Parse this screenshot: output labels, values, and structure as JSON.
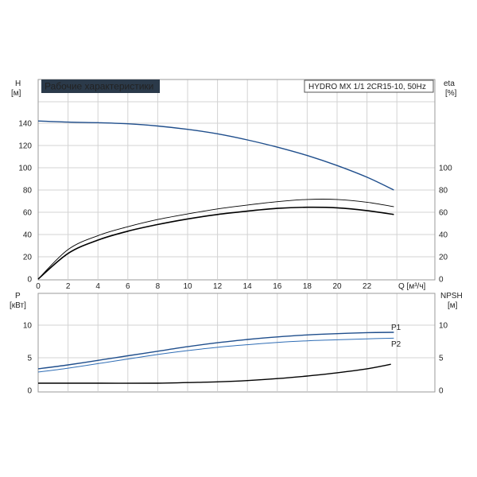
{
  "header": {
    "title": "Рабочие характеристики",
    "model": "HYDRO MX 1/1 2CR15-10, 50Hz"
  },
  "colors": {
    "head_curve": "#1f4e8c",
    "efficiency_curve_1": "#000000",
    "efficiency_curve_2": "#000000",
    "p1_curve": "#1f4e8c",
    "p2_curve": "#2f6db5",
    "npsh_curve": "#000000",
    "title_bg": "#2b3a4a",
    "title_fg": "#ffffff",
    "grid": "#d3d3d3"
  },
  "chart_data": [
    {
      "type": "line",
      "panel": "top",
      "xlabel": "Q [м³/ч]",
      "ylabel_left": "H",
      "ylabel_left_unit": "[м]",
      "ylabel_right": "eta",
      "ylabel_right_unit": "[%]",
      "xlim": [
        0,
        24
      ],
      "ylim": [
        0,
        160
      ],
      "x_ticks": [
        0,
        2,
        4,
        6,
        8,
        10,
        12,
        14,
        16,
        18,
        20,
        22
      ],
      "y_ticks_left": [
        0,
        20,
        40,
        60,
        80,
        100,
        120,
        140
      ],
      "y_ticks_right": [
        0,
        20,
        40,
        60,
        80,
        100
      ],
      "grid": true,
      "series": [
        {
          "key": "head",
          "axis": "left",
          "x": [
            0,
            2,
            4,
            6,
            8,
            10,
            12,
            14,
            16,
            18,
            20,
            22,
            23.8
          ],
          "values": [
            142,
            141,
            140.5,
            139.5,
            137.5,
            134.5,
            130.5,
            125,
            118.5,
            111,
            102,
            91.5,
            80
          ]
        },
        {
          "key": "eta_1",
          "axis": "right",
          "x": [
            0,
            2,
            4,
            6,
            8,
            10,
            12,
            14,
            16,
            18,
            20,
            22,
            23.8
          ],
          "values": [
            0,
            26.5,
            39,
            47,
            53.5,
            58.5,
            63,
            66.5,
            69.5,
            71.5,
            71.5,
            69,
            65
          ]
        },
        {
          "key": "eta_2",
          "axis": "right",
          "x": [
            0,
            2,
            4,
            6,
            8,
            10,
            12,
            14,
            16,
            18,
            20,
            22,
            23.8
          ],
          "values": [
            0,
            23,
            35,
            43,
            49,
            54,
            58,
            61,
            63.5,
            64.5,
            64,
            61.5,
            58
          ]
        }
      ]
    },
    {
      "type": "line",
      "panel": "bottom",
      "ylabel_left": "P",
      "ylabel_left_unit": "[кВт]",
      "ylabel_right": "NPSH",
      "ylabel_right_unit": "[м]",
      "xlim": [
        0,
        24
      ],
      "ylim": [
        0,
        14
      ],
      "y_ticks_left": [
        0,
        5,
        10
      ],
      "y_ticks_right": [
        0,
        5,
        10
      ],
      "grid": true,
      "series": [
        {
          "name": "P1",
          "key": "p1",
          "axis": "left",
          "x": [
            0,
            2,
            4,
            6,
            8,
            10,
            12,
            14,
            16,
            18,
            20,
            22,
            23.8
          ],
          "values": [
            3.3,
            3.9,
            4.6,
            5.3,
            6.0,
            6.7,
            7.3,
            7.8,
            8.2,
            8.5,
            8.7,
            8.85,
            8.9
          ]
        },
        {
          "name": "P2",
          "key": "p2",
          "axis": "left",
          "x": [
            0,
            2,
            4,
            6,
            8,
            10,
            12,
            14,
            16,
            18,
            20,
            22,
            23.8
          ],
          "values": [
            2.8,
            3.4,
            4.1,
            4.8,
            5.5,
            6.1,
            6.6,
            7.0,
            7.35,
            7.6,
            7.75,
            7.9,
            8.0
          ]
        },
        {
          "key": "npsh",
          "axis": "right",
          "x": [
            0,
            4,
            8,
            10,
            12,
            14,
            16,
            18,
            20,
            22,
            23.6
          ],
          "values": [
            1.1,
            1.1,
            1.1,
            1.2,
            1.3,
            1.5,
            1.8,
            2.2,
            2.7,
            3.3,
            4.0
          ]
        }
      ]
    }
  ]
}
